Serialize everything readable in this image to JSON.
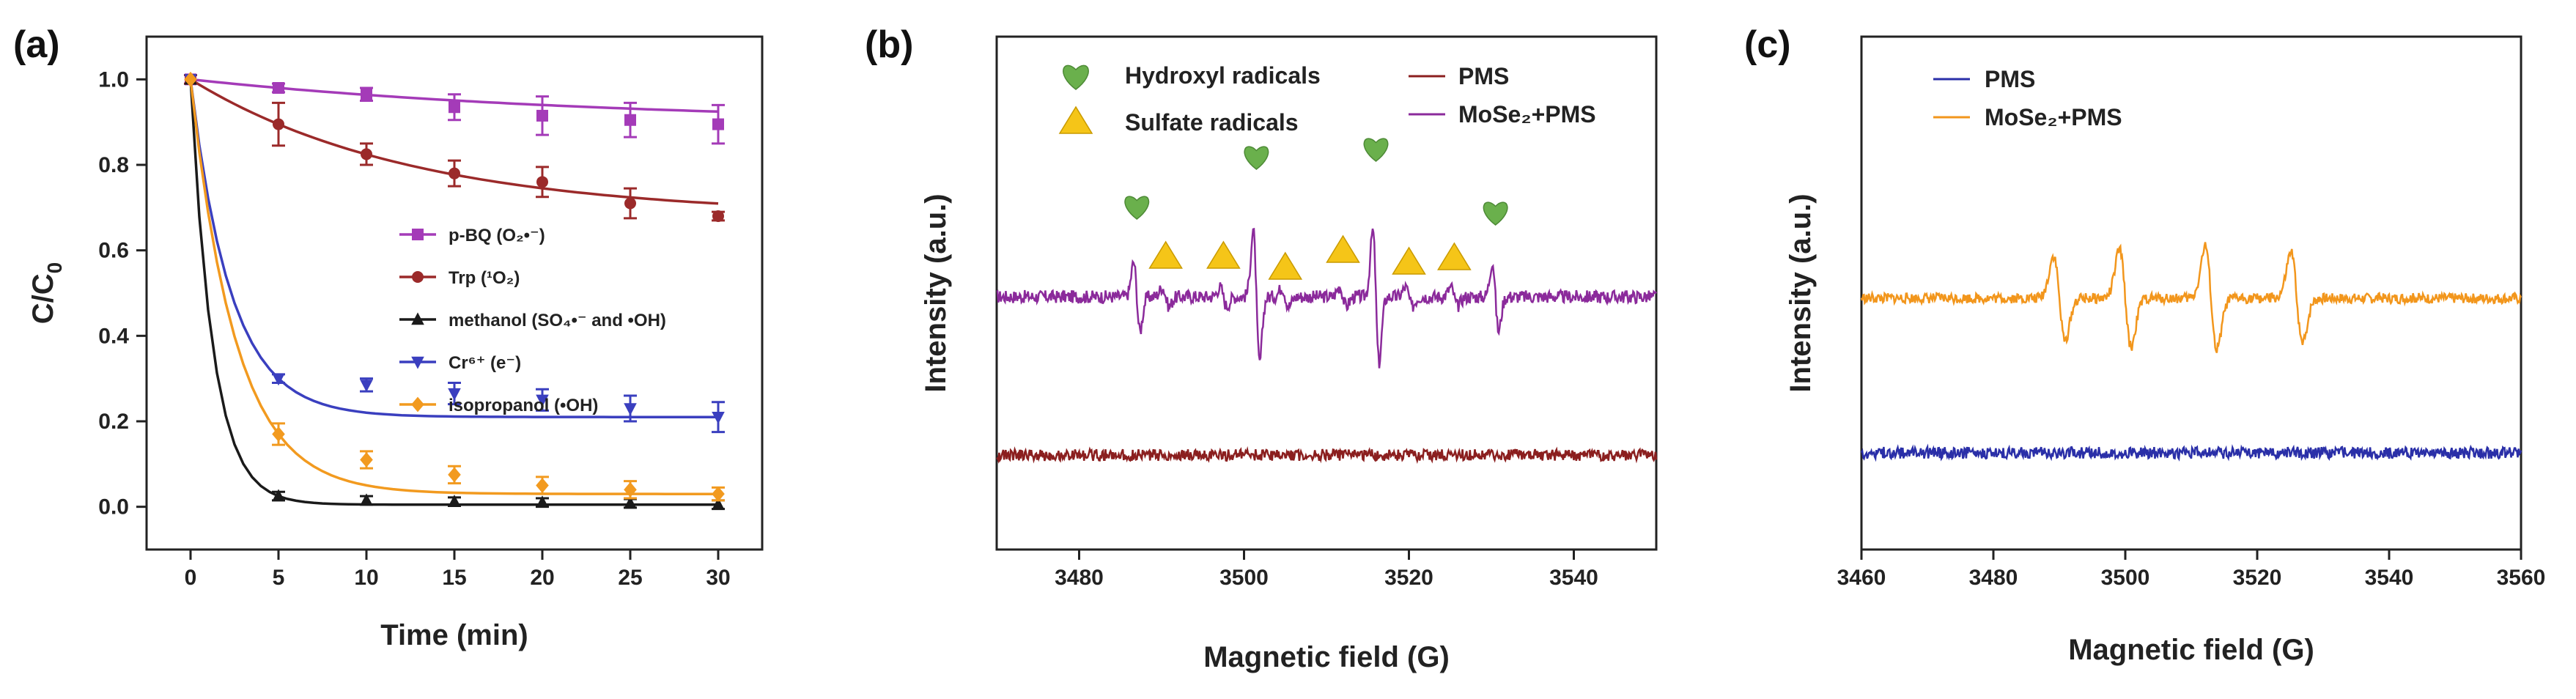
{
  "chart_data": [
    {
      "panel": "(a)",
      "type": "line",
      "xlabel": "Time (min)",
      "ylabel": "C/C",
      "ylabel_sub": "0",
      "x": [
        0,
        5,
        10,
        15,
        20,
        25,
        30
      ],
      "xlim": [
        -2.5,
        32.5
      ],
      "ylim": [
        -0.1,
        1.1
      ],
      "xticks": [
        0,
        5,
        10,
        15,
        20,
        25,
        30
      ],
      "yticks": [
        0.0,
        0.2,
        0.4,
        0.6,
        0.8,
        1.0
      ],
      "legend_position": "center-right",
      "series": [
        {
          "name": "p-BQ (O₂•⁻)",
          "color": "#a43bb8",
          "marker": "square",
          "values": [
            1.0,
            0.98,
            0.965,
            0.935,
            0.915,
            0.905,
            0.895
          ],
          "errors": [
            0.01,
            0.01,
            0.015,
            0.03,
            0.045,
            0.04,
            0.045
          ]
        },
        {
          "name": "Trp (¹O₂)",
          "color": "#9b2a2a",
          "marker": "circle",
          "values": [
            1.0,
            0.895,
            0.825,
            0.78,
            0.76,
            0.71,
            0.68
          ],
          "errors": [
            0.01,
            0.05,
            0.025,
            0.03,
            0.035,
            0.035,
            0.01
          ]
        },
        {
          "name": "methanol (SO₄•⁻ and •OH)",
          "color": "#1a1a1a",
          "marker": "triangle",
          "values": [
            1.0,
            0.025,
            0.015,
            0.012,
            0.01,
            0.008,
            0.005
          ],
          "errors": [
            0.0,
            0.01,
            0.01,
            0.01,
            0.01,
            0.01,
            0.01
          ]
        },
        {
          "name": "Cr⁶⁺ (e⁻)",
          "color": "#3a3fbf",
          "marker": "triangle-down",
          "values": [
            1.0,
            0.3,
            0.285,
            0.265,
            0.25,
            0.23,
            0.21
          ],
          "errors": [
            0.0,
            0.01,
            0.015,
            0.025,
            0.025,
            0.03,
            0.035
          ]
        },
        {
          "name": "isopropanol (•OH)",
          "color": "#f29a1f",
          "marker": "diamond",
          "values": [
            1.0,
            0.17,
            0.11,
            0.075,
            0.05,
            0.04,
            0.03
          ],
          "errors": [
            0.0,
            0.025,
            0.02,
            0.02,
            0.02,
            0.02,
            0.015
          ]
        }
      ]
    },
    {
      "panel": "(b)",
      "type": "line",
      "xlabel": "Magnetic field (G)",
      "ylabel": "Intensity (a.u.)",
      "xlim": [
        3470,
        3550
      ],
      "xticks": [
        3480,
        3500,
        3520,
        3540
      ],
      "legend": [
        {
          "name": "PMS",
          "color": "#8b1f1f"
        },
        {
          "name": "MoSe₂+PMS",
          "color": "#8b2a9b"
        }
      ],
      "marker_legend": [
        {
          "name": "Hydroxyl radicals",
          "shape": "heart",
          "color": "#6ab04c"
        },
        {
          "name": "Sulfate radicals",
          "shape": "triangle",
          "color": "#f5c518"
        }
      ],
      "hydroxyl_peaks_G": [
        3487,
        3501.5,
        3516,
        3530.5
      ],
      "sulfate_peaks_G": [
        3490.5,
        3497.5,
        3505,
        3512,
        3520,
        3525.5
      ]
    },
    {
      "panel": "(c)",
      "type": "line",
      "xlabel": "Magnetic field (G)",
      "ylabel": "Intensity (a.u.)",
      "xlim": [
        3460,
        3560
      ],
      "xticks": [
        3460,
        3480,
        3500,
        3520,
        3540,
        3560
      ],
      "legend": [
        {
          "name": "PMS",
          "color": "#2a2fa8"
        },
        {
          "name": "MoSe₂+PMS",
          "color": "#f2961c"
        }
      ],
      "quartet_peaks_G": [
        3490,
        3500,
        3513,
        3526
      ]
    }
  ]
}
